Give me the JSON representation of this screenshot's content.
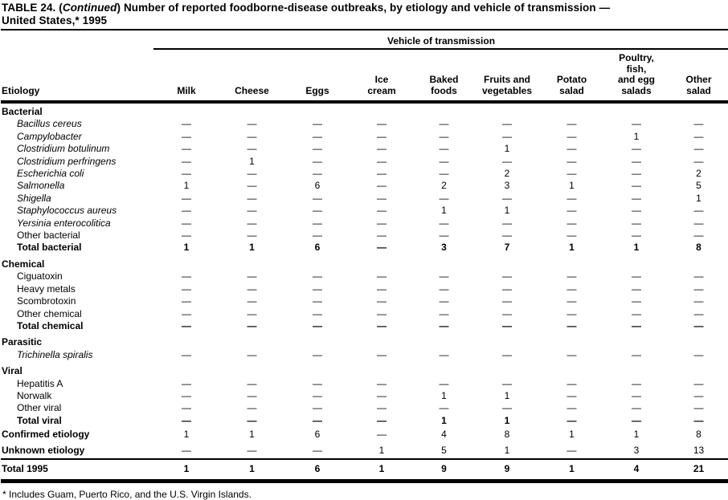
{
  "title": {
    "line1_prefix": "TABLE 24. (",
    "continued": "Continued",
    "line1_rest": ") Number of reported foodborne-disease outbreaks, by etiology and vehicle of transmission —",
    "line2": "United States,* 1995"
  },
  "table": {
    "spanner": "Vehicle of transmission",
    "row_header": "Etiology",
    "columns": [
      "Milk",
      "Cheese",
      "Eggs",
      "Ice\ncream",
      "Baked\nfoods",
      "Fruits and\nvegetables",
      "Potato\nsalad",
      "Poultry,\nfish,\nand egg\nsalads",
      "Other\nsalad"
    ],
    "rows": [
      {
        "label": "Bacterial",
        "type": "section",
        "values": []
      },
      {
        "label": "Bacillus cereus",
        "type": "species",
        "values": [
          "—",
          "—",
          "—",
          "—",
          "—",
          "—",
          "—",
          "—",
          "—"
        ]
      },
      {
        "label": "Campylobacter",
        "type": "species",
        "values": [
          "—",
          "—",
          "—",
          "—",
          "—",
          "—",
          "—",
          "1",
          "—"
        ]
      },
      {
        "label": "Clostridium botulinum",
        "type": "species",
        "values": [
          "—",
          "—",
          "—",
          "—",
          "—",
          "1",
          "—",
          "—",
          "—"
        ]
      },
      {
        "label": "Clostridium perfringens",
        "type": "species",
        "values": [
          "—",
          "1",
          "—",
          "—",
          "—",
          "—",
          "—",
          "—",
          "—"
        ]
      },
      {
        "label": "Escherichia coli",
        "type": "species",
        "values": [
          "—",
          "—",
          "—",
          "—",
          "—",
          "2",
          "—",
          "—",
          "2"
        ]
      },
      {
        "label": "Salmonella",
        "type": "species",
        "values": [
          "1",
          "—",
          "6",
          "—",
          "2",
          "3",
          "1",
          "—",
          "5"
        ]
      },
      {
        "label": "Shigella",
        "type": "species",
        "values": [
          "—",
          "—",
          "—",
          "—",
          "—",
          "—",
          "—",
          "—",
          "1"
        ]
      },
      {
        "label": "Staphylococcus aureus",
        "type": "species",
        "values": [
          "—",
          "—",
          "—",
          "—",
          "1",
          "1",
          "—",
          "—",
          "—"
        ]
      },
      {
        "label": "Yersinia enterocolitica",
        "type": "species",
        "values": [
          "—",
          "—",
          "—",
          "—",
          "—",
          "—",
          "—",
          "—",
          "—"
        ]
      },
      {
        "label": "Other bacterial",
        "type": "item",
        "values": [
          "—",
          "—",
          "—",
          "—",
          "—",
          "—",
          "—",
          "—",
          "—"
        ]
      },
      {
        "label": "Total bacterial",
        "type": "total",
        "values": [
          "1",
          "1",
          "6",
          "—",
          "3",
          "7",
          "1",
          "1",
          "8"
        ]
      },
      {
        "label": "Chemical",
        "type": "section",
        "values": []
      },
      {
        "label": "Ciguatoxin",
        "type": "item",
        "values": [
          "—",
          "—",
          "—",
          "—",
          "—",
          "—",
          "—",
          "—",
          "—"
        ]
      },
      {
        "label": "Heavy metals",
        "type": "item",
        "values": [
          "—",
          "—",
          "—",
          "—",
          "—",
          "—",
          "—",
          "—",
          "—"
        ]
      },
      {
        "label": "Scombrotoxin",
        "type": "item",
        "values": [
          "—",
          "—",
          "—",
          "—",
          "—",
          "—",
          "—",
          "—",
          "—"
        ]
      },
      {
        "label": "Other chemical",
        "type": "item",
        "values": [
          "—",
          "—",
          "—",
          "—",
          "—",
          "—",
          "—",
          "—",
          "—"
        ]
      },
      {
        "label": "Total chemical",
        "type": "total",
        "values": [
          "—",
          "—",
          "—",
          "—",
          "—",
          "—",
          "—",
          "—",
          "—"
        ]
      },
      {
        "label": "Parasitic",
        "type": "section",
        "values": []
      },
      {
        "label": "Trichinella spiralis",
        "type": "species",
        "values": [
          "—",
          "—",
          "—",
          "—",
          "—",
          "—",
          "—",
          "—",
          "—"
        ]
      },
      {
        "label": "Viral",
        "type": "section",
        "values": []
      },
      {
        "label": "Hepatitis A",
        "type": "item",
        "values": [
          "—",
          "—",
          "—",
          "—",
          "—",
          "—",
          "—",
          "—",
          "—"
        ]
      },
      {
        "label": "Norwalk",
        "type": "item",
        "values": [
          "—",
          "—",
          "—",
          "—",
          "1",
          "1",
          "—",
          "—",
          "—"
        ]
      },
      {
        "label": "Other viral",
        "type": "item",
        "values": [
          "—",
          "—",
          "—",
          "—",
          "—",
          "—",
          "—",
          "—",
          "—"
        ]
      },
      {
        "label": "Total viral",
        "type": "total",
        "values": [
          "—",
          "—",
          "—",
          "—",
          "1",
          "1",
          "—",
          "—",
          "—"
        ]
      },
      {
        "label": "Confirmed etiology",
        "type": "summary",
        "values": [
          "1",
          "1",
          "6",
          "—",
          "4",
          "8",
          "1",
          "1",
          "8"
        ]
      },
      {
        "label": "Unknown etiology",
        "type": "summary",
        "values": [
          "—",
          "—",
          "—",
          "1",
          "5",
          "1",
          "—",
          "3",
          "13"
        ]
      },
      {
        "label": "Total 1995",
        "type": "grand",
        "values": [
          "1",
          "1",
          "6",
          "1",
          "9",
          "9",
          "1",
          "4",
          "21"
        ]
      }
    ]
  },
  "footnote": "* Includes Guam, Puerto Rico, and the U.S. Virgin Islands."
}
